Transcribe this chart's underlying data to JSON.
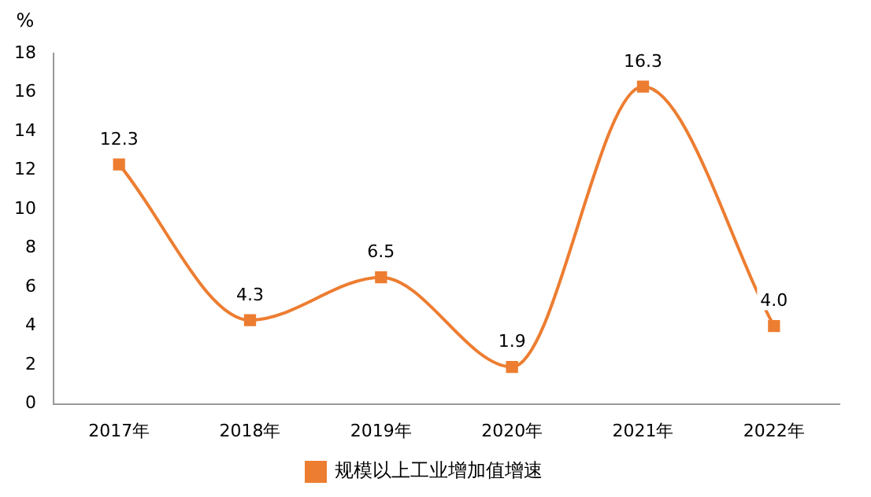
{
  "chart_data": {
    "type": "line",
    "ylabel": "%",
    "categories": [
      "2017年",
      "2018年",
      "2019年",
      "2020年",
      "2021年",
      "2022年"
    ],
    "series": [
      {
        "name": "规模以上工业增加值增速",
        "color": "#ed7d31",
        "values": [
          12.3,
          4.3,
          6.5,
          1.9,
          16.3,
          4.0
        ]
      }
    ],
    "value_labels": [
      "12.3",
      "4.3",
      "6.5",
      "1.9",
      "16.3",
      "4.0"
    ],
    "ylim": [
      0,
      18
    ],
    "yticks": [
      0,
      2,
      4,
      6,
      8,
      10,
      12,
      14,
      16,
      18
    ],
    "grid": false,
    "legend": "bottom",
    "marker": "square",
    "line_style": "solid"
  }
}
